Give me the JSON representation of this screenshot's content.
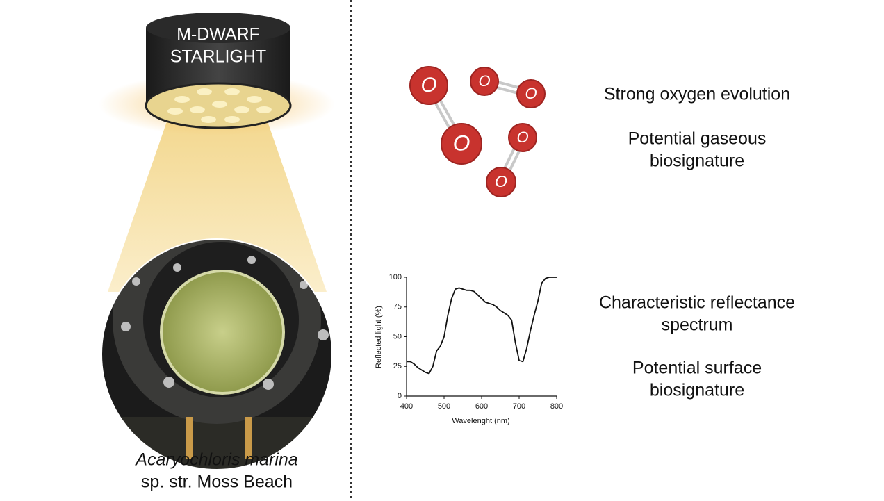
{
  "lamp": {
    "lines": [
      "M-DWARF",
      "STARLIGHT"
    ]
  },
  "sample": {
    "name": "Acaryochloris marina",
    "strain": "sp. str. Moss Beach"
  },
  "molecule": {
    "atom_label": "O"
  },
  "captions": {
    "oxygen": [
      "Strong oxygen evolution"
    ],
    "gaseous": [
      "Potential gaseous",
      "biosignature"
    ],
    "reflectance": [
      "Characteristic reflectance",
      "spectrum"
    ],
    "surface": [
      "Potential surface",
      "biosignature"
    ]
  },
  "chart_data": {
    "type": "line",
    "x_label": "Wavelenght (nm)",
    "y_label": "Reflected light (%)",
    "x": [
      400,
      410,
      420,
      430,
      440,
      450,
      460,
      470,
      480,
      490,
      500,
      510,
      520,
      530,
      540,
      550,
      560,
      570,
      580,
      590,
      600,
      610,
      620,
      630,
      640,
      650,
      660,
      670,
      680,
      690,
      700,
      710,
      720,
      730,
      740,
      750,
      760,
      770,
      780,
      790,
      800
    ],
    "values": [
      29,
      29,
      27,
      24,
      22,
      20,
      19,
      25,
      38,
      42,
      50,
      68,
      82,
      90,
      91,
      90,
      89,
      89,
      88,
      85,
      82,
      79,
      78,
      77,
      75,
      72,
      70,
      68,
      64,
      45,
      30,
      29,
      40,
      55,
      68,
      80,
      95,
      99,
      100,
      100,
      100
    ],
    "color": "#111111",
    "xlim": [
      400,
      800
    ],
    "ylim": [
      0,
      100
    ],
    "xticks": [
      400,
      500,
      600,
      700,
      800
    ],
    "yticks": [
      0,
      25,
      50,
      75,
      100
    ]
  }
}
